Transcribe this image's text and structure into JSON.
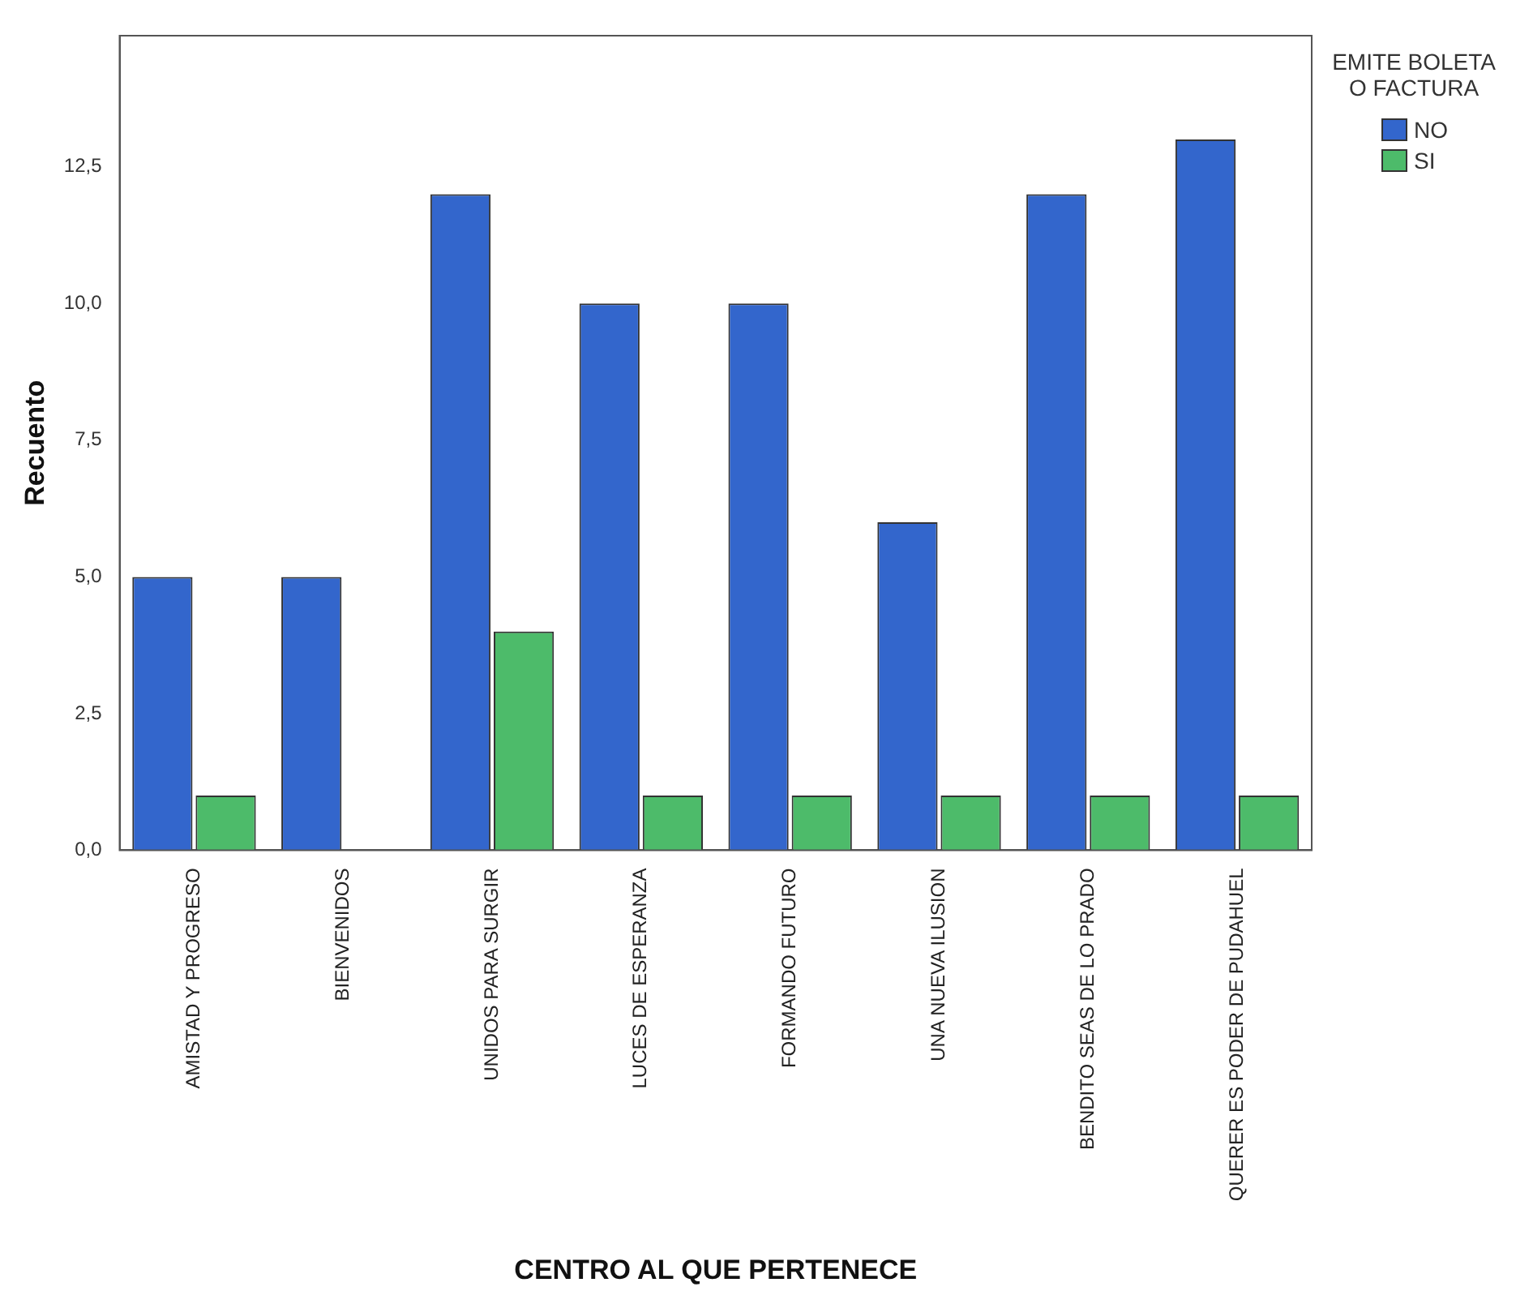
{
  "chart_data": {
    "type": "bar",
    "categories": [
      "AMISTAD Y PROGRESO",
      "BIENVENIDOS",
      "UNIDOS PARA SURGIR",
      "LUCES DE ESPERANZA",
      "FORMANDO FUTURO",
      "UNA NUEVA ILUSION",
      "BENDITO SEAS DE LO PRADO",
      "QUERER ES PODER DE PUDAHUEL"
    ],
    "series": [
      {
        "name": "NO",
        "color": "#3366cc",
        "values": [
          5,
          5,
          12,
          10,
          10,
          6,
          12,
          13
        ]
      },
      {
        "name": "SI",
        "color": "#4dbb6a",
        "values": [
          1,
          null,
          4,
          1,
          1,
          1,
          1,
          1
        ]
      }
    ],
    "xlabel": "CENTRO AL QUE PERTENECE",
    "ylabel": "Recuento",
    "legend_title": "EMITE BOLETA O FACTURA",
    "ylim": [
      0,
      14.9
    ],
    "yticks": [
      {
        "value": 0,
        "label": "0,0"
      },
      {
        "value": 2.5,
        "label": "2,5"
      },
      {
        "value": 5,
        "label": "5,0"
      },
      {
        "value": 7.5,
        "label": "7,5"
      },
      {
        "value": 10,
        "label": "10,0"
      },
      {
        "value": 12.5,
        "label": "12,5"
      }
    ],
    "grid": false,
    "legend": "right"
  }
}
